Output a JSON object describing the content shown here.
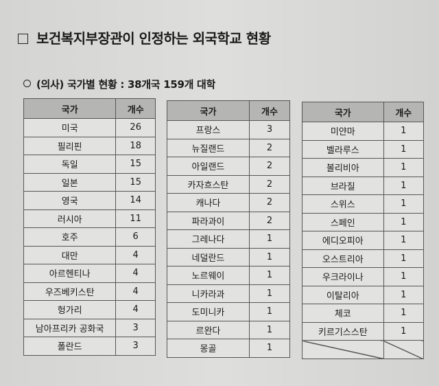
{
  "title": "보건복지부장관이 인정하는 외국학교 현황",
  "subtitle": "(의사) 국가별 현황 : 38개국 159개 대학",
  "headers": {
    "country": "국가",
    "count": "개수"
  },
  "tables": [
    [
      [
        "미국",
        "26"
      ],
      [
        "필리핀",
        "18"
      ],
      [
        "독일",
        "15"
      ],
      [
        "일본",
        "15"
      ],
      [
        "영국",
        "14"
      ],
      [
        "러시아",
        "11"
      ],
      [
        "호주",
        "6"
      ],
      [
        "대만",
        "4"
      ],
      [
        "아르헨티나",
        "4"
      ],
      [
        "우즈베키스탄",
        "4"
      ],
      [
        "헝가리",
        "4"
      ],
      [
        "남아프리카 공화국",
        "3"
      ],
      [
        "폴란드",
        "3"
      ]
    ],
    [
      [
        "프랑스",
        "3"
      ],
      [
        "뉴질랜드",
        "2"
      ],
      [
        "아일랜드",
        "2"
      ],
      [
        "카자흐스탄",
        "2"
      ],
      [
        "캐나다",
        "2"
      ],
      [
        "파라과이",
        "2"
      ],
      [
        "그레나다",
        "1"
      ],
      [
        "네덜란드",
        "1"
      ],
      [
        "노르웨이",
        "1"
      ],
      [
        "니카라과",
        "1"
      ],
      [
        "도미니카",
        "1"
      ],
      [
        "르완다",
        "1"
      ],
      [
        "몽골",
        "1"
      ]
    ],
    [
      [
        "미얀마",
        "1"
      ],
      [
        "벨라루스",
        "1"
      ],
      [
        "볼리비아",
        "1"
      ],
      [
        "브라질",
        "1"
      ],
      [
        "스위스",
        "1"
      ],
      [
        "스페인",
        "1"
      ],
      [
        "에디오피아",
        "1"
      ],
      [
        "오스트리아",
        "1"
      ],
      [
        "우크라이나",
        "1"
      ],
      [
        "이탈리아",
        "1"
      ],
      [
        "체코",
        "1"
      ],
      [
        "키르기스스탄",
        "1"
      ]
    ]
  ]
}
